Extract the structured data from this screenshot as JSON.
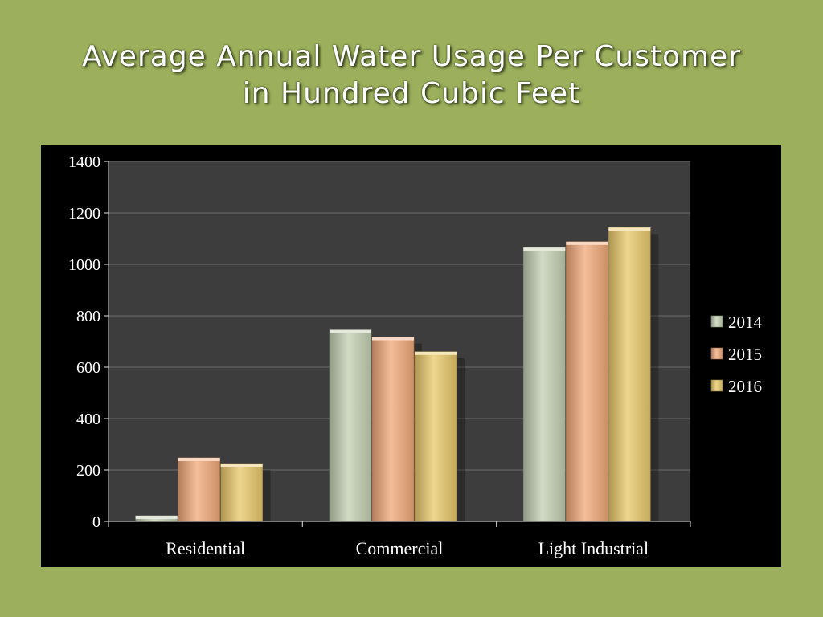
{
  "slide": {
    "title_line1": "Average Annual Water Usage Per Customer",
    "title_line2": "in Hundred Cubic Feet"
  },
  "chart_data": {
    "type": "bar",
    "categories": [
      "Residential",
      "Commercial",
      "Light Industrial"
    ],
    "series": [
      {
        "name": "2014",
        "values": [
          22,
          745,
          1065
        ],
        "color": "#c3cfb2"
      },
      {
        "name": "2015",
        "values": [
          247,
          717,
          1088
        ],
        "color": "#f0a878"
      },
      {
        "name": "2016",
        "values": [
          225,
          660,
          1143
        ],
        "color": "#e8c86a"
      }
    ],
    "ylim": [
      0,
      1400
    ],
    "yticks": [
      "0",
      "200",
      "400",
      "600",
      "800",
      "1000",
      "1200",
      "1400"
    ],
    "grid": true,
    "legend_position": "right",
    "plot_background": "#3d3d3d",
    "frame_background": "#000000"
  }
}
